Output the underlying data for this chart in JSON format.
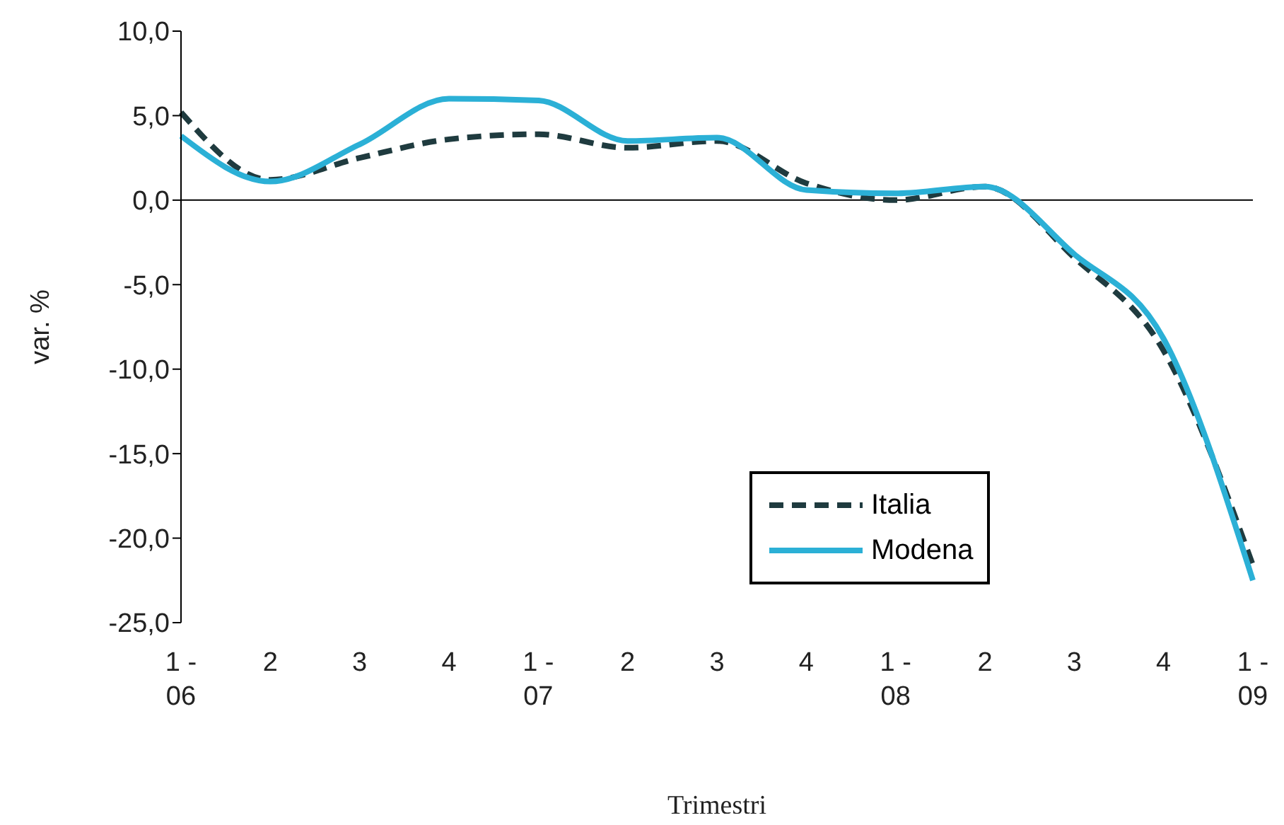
{
  "chart_data": {
    "type": "line",
    "xlabel": "Trimestri",
    "ylabel": "var. %",
    "categories": [
      "1 -\n06",
      "2",
      "3",
      "4",
      "1 -\n07",
      "2",
      "3",
      "4",
      "1 -\n08",
      "2",
      "3",
      "4",
      "1 -\n09"
    ],
    "series": [
      {
        "name": "Italia",
        "color": "#1f3b3f",
        "line_style": "dashed",
        "values": [
          5.2,
          1.2,
          2.5,
          3.6,
          3.9,
          3.1,
          3.5,
          1.0,
          0.0,
          0.8,
          -3.4,
          -8.9,
          -21.6
        ]
      },
      {
        "name": "Modena",
        "color": "#2bb0d6",
        "line_style": "solid",
        "values": [
          3.8,
          1.1,
          3.3,
          6.0,
          5.9,
          3.5,
          3.7,
          0.6,
          0.4,
          0.8,
          -3.2,
          -8.2,
          -22.5
        ]
      }
    ],
    "ylim": [
      -25,
      10
    ],
    "yticks": [
      {
        "value": -25,
        "label": "-25,0"
      },
      {
        "value": -20,
        "label": "-20,0"
      },
      {
        "value": -15,
        "label": "-15,0"
      },
      {
        "value": -10,
        "label": "-10,0"
      },
      {
        "value": -5,
        "label": "-5,0"
      },
      {
        "value": 0,
        "label": "0,0"
      },
      {
        "value": 5,
        "label": "5,0"
      },
      {
        "value": 10,
        "label": "10,0"
      }
    ],
    "ref_lines": [
      {
        "axis": "y",
        "value": 0,
        "color": "#000000"
      }
    ],
    "grid": false,
    "legend": "bottom right",
    "marker": "none"
  }
}
